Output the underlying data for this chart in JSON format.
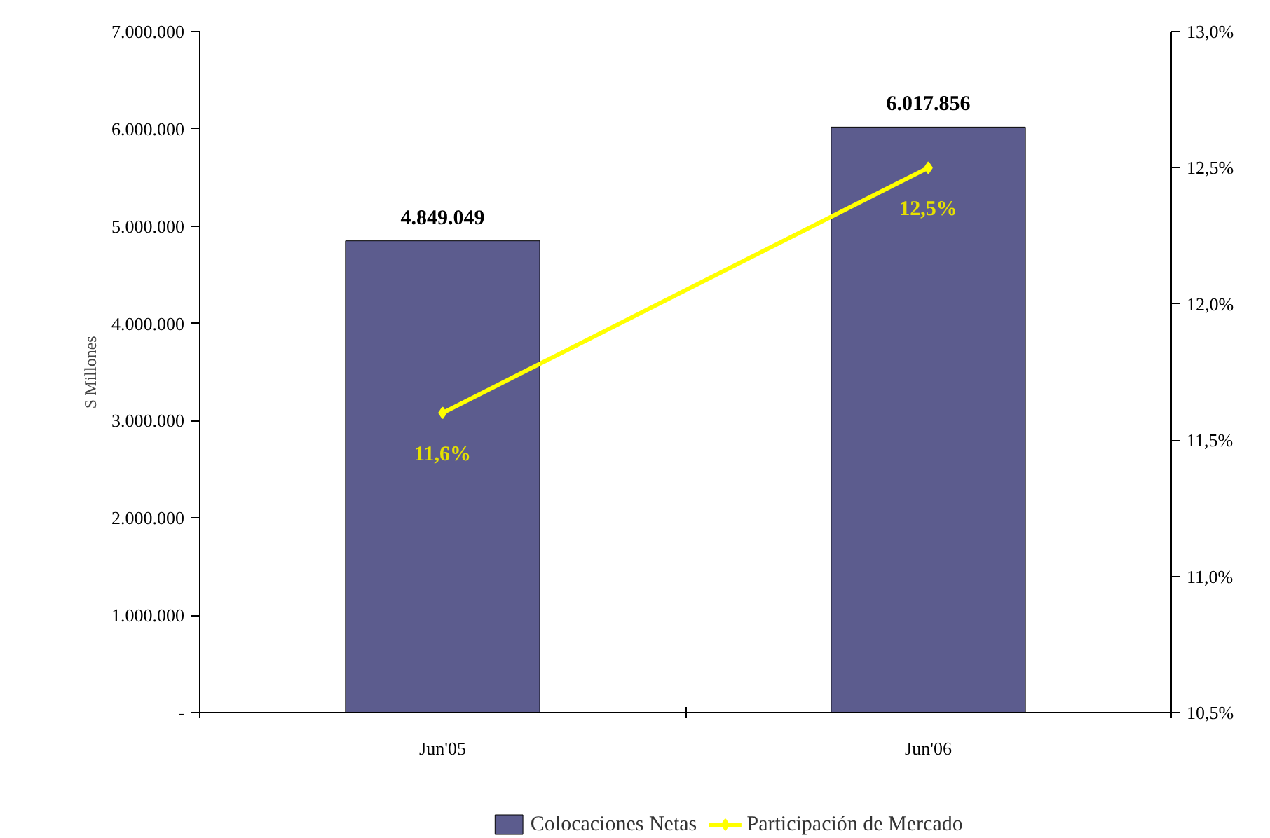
{
  "chart_data": {
    "type": "bar",
    "ylabel": "$ Millones",
    "categories": [
      "Jun'05",
      "Jun'06"
    ],
    "series": [
      {
        "name": "Colocaciones Netas",
        "color": "#5c5c8e",
        "values": [
          4849049,
          6017856
        ],
        "value_labels": [
          "4.849.049",
          "6.017.856"
        ]
      },
      {
        "name": "Participación de Mercado",
        "type": "line",
        "axis": "y2",
        "color": "#ffff00",
        "values": [
          11.6,
          12.5
        ],
        "value_labels": [
          "11,6%",
          "12,5%"
        ]
      }
    ],
    "ylim": [
      0,
      7000000
    ],
    "yticks": [
      {
        "value": 0,
        "label": "-"
      },
      {
        "value": 1000000,
        "label": "1.000.000"
      },
      {
        "value": 2000000,
        "label": "2.000.000"
      },
      {
        "value": 3000000,
        "label": "3.000.000"
      },
      {
        "value": 4000000,
        "label": "4.000.000"
      },
      {
        "value": 5000000,
        "label": "5.000.000"
      },
      {
        "value": 6000000,
        "label": "6.000.000"
      },
      {
        "value": 7000000,
        "label": "7.000.000"
      }
    ],
    "y2lim": [
      10.5,
      13.0
    ],
    "y2ticks": [
      {
        "value": 10.5,
        "label": "10,5%"
      },
      {
        "value": 11.0,
        "label": "11,0%"
      },
      {
        "value": 11.5,
        "label": "11,5%"
      },
      {
        "value": 12.0,
        "label": "12,0%"
      },
      {
        "value": 12.5,
        "label": "12,5%"
      },
      {
        "value": 13.0,
        "label": "13,0%"
      }
    ],
    "grid": false,
    "legend": "bottom",
    "marker": "diamond",
    "line_style": "solid"
  }
}
